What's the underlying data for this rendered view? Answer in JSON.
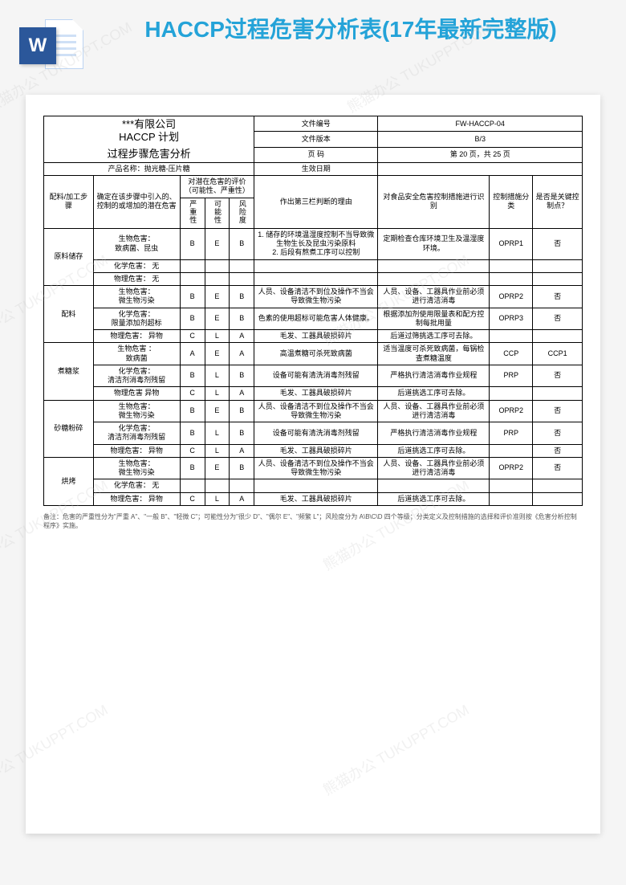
{
  "watermark_text": "熊猫办公 TUKUPPT.COM",
  "header": {
    "title": "HACCP过程危害分析表(17年最新完整版)",
    "word_badge": "W"
  },
  "doc_header": {
    "company_line1": "***有限公司",
    "company_line2": "HACCP 计划",
    "company_line3": "过程步骤危害分析",
    "meta": {
      "doc_no_label": "文件编号",
      "doc_no": "FW-HACCP-04",
      "version_label": "文件版本",
      "version": "B/3",
      "page_label": "页  码",
      "page": "第 20 页，共 25 页",
      "product_label": "产品名称：",
      "product": "抛光糖-压片糖",
      "eff_label": "生效日期",
      "eff": ""
    }
  },
  "columns": {
    "c1": "配料/加工步骤",
    "c2": "确定在该步骤中引入的、控制的或增加的潜在危害",
    "c3_group": "对潜在危害的评价（可能性、严重性）",
    "c3a": "严重性",
    "c3b": "可能性",
    "c3c": "风险度",
    "c4": "作出第三栏判断的理由",
    "c5": "对食品安全危害控制措施进行识别",
    "c6": "控制措施分类",
    "c7": "是否是关键控制点？"
  },
  "rows": [
    {
      "step": "原料储存",
      "hazard": "生物危害：\n致病菌、昆虫",
      "sev": "B",
      "lik": "E",
      "risk": "B",
      "reason": "1. 储存的环境温湿度控制不当导致微生物生长及昆虫污染原料\n2. 后段有熬煮工序可以控制",
      "measure": "定期检查仓库环境卫生及温湿度环境。",
      "cat": "OPRP1",
      "ccp": "否"
    },
    {
      "step": "",
      "hazard": "化学危害：  无",
      "sev": "",
      "lik": "",
      "risk": "",
      "reason": "",
      "measure": "",
      "cat": "",
      "ccp": ""
    },
    {
      "step": "",
      "hazard": "物理危害：  无",
      "sev": "",
      "lik": "",
      "risk": "",
      "reason": "",
      "measure": "",
      "cat": "",
      "ccp": ""
    },
    {
      "step": "配料",
      "hazard": "生物危害：\n微生物污染",
      "sev": "B",
      "lik": "E",
      "risk": "B",
      "reason": "人员、设备清洁不到位及操作不当会导致微生物污染",
      "measure": "人员、设备、工器具作业前必须进行清洁消毒",
      "cat": "OPRP2",
      "ccp": "否"
    },
    {
      "step": "",
      "hazard": "化学危害：\n限量添加剂超标",
      "sev": "B",
      "lik": "E",
      "risk": "B",
      "reason": "色素的使用超标可能危害人体健康。",
      "measure": "根据添加剂使用限量表和配方控制每批用量",
      "cat": "OPRP3",
      "ccp": "否"
    },
    {
      "step": "",
      "hazard": "物理危害：  异物",
      "sev": "C",
      "lik": "L",
      "risk": "A",
      "reason": "毛发、工器具破损碎片",
      "measure": "后道过筛挑选工序可去除。",
      "cat": "",
      "ccp": ""
    },
    {
      "step": "煮糖浆",
      "hazard": "生物危害 ：\n致病菌",
      "sev": "A",
      "lik": "E",
      "risk": "A",
      "reason": "高温煮糖可杀死致病菌",
      "measure": "适当温度可杀死致病菌，每锅检查煮糖温度",
      "cat": "CCP",
      "ccp": "CCP1"
    },
    {
      "step": "",
      "hazard": "化学危害：\n清洁剂消毒剂残留",
      "sev": "B",
      "lik": "L",
      "risk": "B",
      "reason": "设备可能有清洗消毒剂残留",
      "measure": "严格执行清洁消毒作业规程",
      "cat": "PRP",
      "ccp": "否"
    },
    {
      "step": "",
      "hazard": "物理危害   异物",
      "sev": "C",
      "lik": "L",
      "risk": "A",
      "reason": "毛发、工器具破损碎片",
      "measure": "后道挑选工序可去除。",
      "cat": "",
      "ccp": ""
    },
    {
      "step": "砂糖粉碎",
      "hazard": "生物危害：\n微生物污染",
      "sev": "B",
      "lik": "E",
      "risk": "B",
      "reason": "人员、设备清洁不到位及操作不当会导致微生物污染",
      "measure": "人员、设备、工器具作业前必须进行清洁消毒",
      "cat": "OPRP2",
      "ccp": "否"
    },
    {
      "step": "",
      "hazard": "化学危害：\n清洁剂消毒剂残留",
      "sev": "B",
      "lik": "L",
      "risk": "B",
      "reason": "设备可能有清洗消毒剂残留",
      "measure": "严格执行清洁消毒作业规程",
      "cat": "PRP",
      "ccp": "否"
    },
    {
      "step": "",
      "hazard": "物理危害：  异物",
      "sev": "C",
      "lik": "L",
      "risk": "A",
      "reason": "毛发、工器具破损碎片",
      "measure": "后道挑选工序可去除。",
      "cat": "",
      "ccp": "否"
    },
    {
      "step": "烘烤",
      "hazard": "生物危害：\n微生物污染",
      "sev": "B",
      "lik": "E",
      "risk": "B",
      "reason": "人员、设备清洁不到位及操作不当会导致微生物污染",
      "measure": "人员、设备、工器具作业前必须进行清洁消毒",
      "cat": "OPRP2",
      "ccp": "否"
    },
    {
      "step": "",
      "hazard": "化学危害：  无",
      "sev": "",
      "lik": "",
      "risk": "",
      "reason": "",
      "measure": "",
      "cat": "",
      "ccp": ""
    },
    {
      "step": "",
      "hazard": "物理危害：  异物",
      "sev": "C",
      "lik": "L",
      "risk": "A",
      "reason": "毛发、工器具破损碎片",
      "measure": "后道挑选工序可去除。",
      "cat": "",
      "ccp": ""
    }
  ],
  "row_groups": [
    {
      "step": "原料储存",
      "span": 3
    },
    {
      "step": "配料",
      "span": 3
    },
    {
      "step": "煮糖浆",
      "span": 3
    },
    {
      "step": "砂糖粉碎",
      "span": 3
    },
    {
      "step": "烘烤",
      "span": 3
    }
  ],
  "footnote": "备注：危害的严重性分为\"严重 A\"、\"一般 B\"、\"轻微 C\"；可能性分为\"很少 D\"、\"偶尔 E\"、\"频繁 L\"；风险度分为 A\\B\\C\\D 四个等级；分类定义及控制措施的选择和评价准则按《危害分析控制程序》实施。",
  "colors": {
    "title": "#24a3d8",
    "word_badge": "#2b579a",
    "page_bg": "#f5f5f5",
    "paper": "#ffffff",
    "border": "#000000"
  }
}
